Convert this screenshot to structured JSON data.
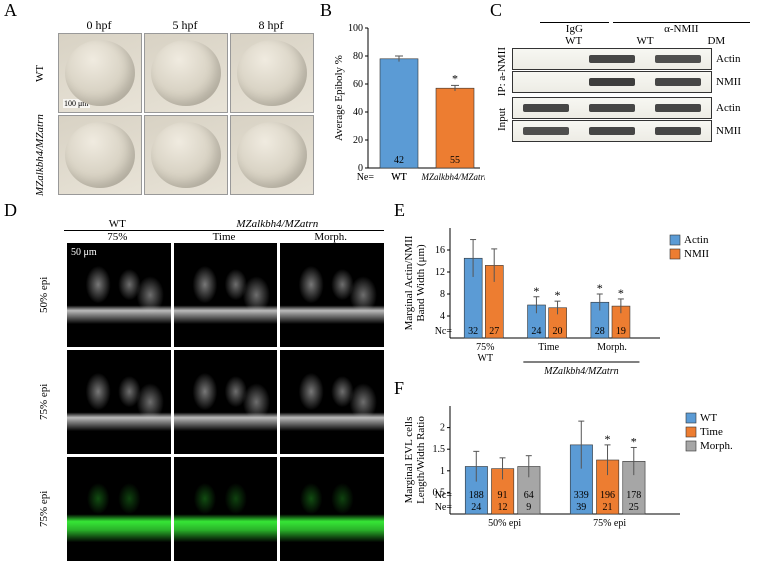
{
  "labels": {
    "A": "A",
    "B": "B",
    "C": "C",
    "D": "D",
    "E": "E",
    "F": "F"
  },
  "panelA": {
    "timepoints": [
      "0 hpf",
      "5 hpf",
      "8 hpf"
    ],
    "rows": [
      "WT",
      "MZalkbh4/MZatrn"
    ],
    "scale_bar": "100 μm"
  },
  "panelB": {
    "type": "bar",
    "ylabel": "Average Epiboly %",
    "ylim": [
      0,
      100
    ],
    "ytick_step": 20,
    "categories": [
      "WT",
      "MZalkbh4/MZatrn"
    ],
    "values": [
      78,
      57
    ],
    "errors": [
      2,
      2
    ],
    "ne": [
      42,
      55
    ],
    "ne_label": "Ne=",
    "colors": [
      "#5b9bd5",
      "#ed7d31"
    ],
    "sig_marks": [
      "",
      "*"
    ]
  },
  "panelC": {
    "groups": [
      {
        "label": "IgG",
        "lanes": [
          "WT"
        ]
      },
      {
        "label": "α-NMII",
        "lanes": [
          "WT",
          "DM"
        ]
      }
    ],
    "ip_label": "IP: a-NMII",
    "input_label": "Input",
    "rows": [
      "Actin",
      "NMII",
      "Actin",
      "NMII"
    ],
    "band_intensity": [
      [
        0.05,
        0.9,
        0.85
      ],
      [
        0.05,
        0.95,
        0.9
      ],
      [
        0.9,
        0.9,
        0.9
      ],
      [
        0.85,
        0.9,
        0.9
      ]
    ]
  },
  "panelD": {
    "top_groups": [
      "WT",
      "MZalkbh4/MZatrn"
    ],
    "wt_stage": "75%",
    "mz_sub": [
      "Time",
      "Morph."
    ],
    "row_labels": [
      "50% epi",
      "75% epi",
      "75% epi"
    ],
    "row_channel": [
      "gray",
      "gray",
      "green"
    ],
    "scale_bar": "50 μm"
  },
  "panelE": {
    "type": "grouped_bar",
    "ylabel": "Marginal Actin/NMII\nBand Width (μm)",
    "ylim": [
      0,
      20
    ],
    "yticks": [
      4,
      8,
      12,
      16
    ],
    "groups": [
      "75%\nWT",
      "Time",
      "Morph."
    ],
    "group_header2": "MZalkbh4/MZatrn",
    "series": [
      {
        "name": "Actin",
        "color": "#5b9bd5",
        "values": [
          14.5,
          6.0,
          6.5
        ],
        "err": [
          3.4,
          1.5,
          1.5
        ],
        "nc": [
          32,
          24,
          28
        ],
        "sig": [
          "",
          "*",
          "*"
        ]
      },
      {
        "name": "NMII",
        "color": "#ed7d31",
        "values": [
          13.2,
          5.5,
          5.8
        ],
        "err": [
          3.0,
          1.2,
          1.3
        ],
        "nc": [
          27,
          20,
          19
        ],
        "sig": [
          "",
          "*",
          "*"
        ]
      }
    ],
    "nc_label": "Nc="
  },
  "panelF": {
    "type": "grouped_bar",
    "ylabel": "Marginal EVL cells\nLength/Width Ratio",
    "ylim": [
      0,
      2.5
    ],
    "yticks": [
      0.5,
      1,
      1.5,
      2
    ],
    "groups": [
      "50% epi",
      "75% epi"
    ],
    "series": [
      {
        "name": "WT",
        "color": "#5b9bd5",
        "values": [
          1.1,
          1.6
        ],
        "err": [
          0.35,
          0.55
        ],
        "nc": [
          188,
          339
        ],
        "ne": [
          24,
          39
        ],
        "sig": [
          "",
          ""
        ]
      },
      {
        "name": "Time",
        "color": "#ed7d31",
        "values": [
          1.05,
          1.25
        ],
        "err": [
          0.25,
          0.35
        ],
        "nc": [
          91,
          196
        ],
        "ne": [
          12,
          21
        ],
        "sig": [
          "",
          "*"
        ]
      },
      {
        "name": "Morph.",
        "color": "#a6a6a6",
        "values": [
          1.1,
          1.22
        ],
        "err": [
          0.25,
          0.32
        ],
        "nc": [
          64,
          178
        ],
        "ne": [
          9,
          25
        ],
        "sig": [
          "",
          "*"
        ]
      }
    ],
    "nc_label": "Nc=",
    "ne_label": "Ne="
  },
  "style": {
    "bg": "#ffffff",
    "axis": "#000000",
    "grid": "#d0d0d0",
    "err": "#666666",
    "font_axis": 11,
    "font_tick": 10
  }
}
